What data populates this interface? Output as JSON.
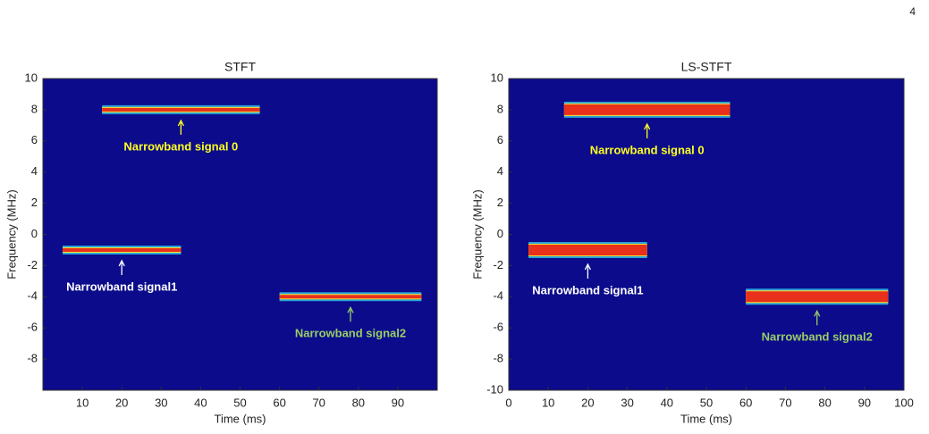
{
  "page_number": "4",
  "chart_data": [
    {
      "type": "spectrogram",
      "title": "STFT",
      "xlabel": "Time (ms)",
      "ylabel": "Frequency (MHz)",
      "xlim": [
        0,
        100
      ],
      "ylim": [
        -10,
        10
      ],
      "xticks": [
        10,
        20,
        30,
        40,
        50,
        60,
        70,
        80,
        90
      ],
      "yticks": [
        -8,
        -6,
        -4,
        -2,
        0,
        2,
        4,
        6,
        8,
        10
      ],
      "background": "#0b0b8c",
      "series": [
        {
          "name": "Narrowband signal 0",
          "color": "#e8301a",
          "label_color": "#ffff22",
          "x": [
            15,
            55
          ],
          "values": [
            8,
            8
          ]
        },
        {
          "name": "Narrowband signal1",
          "color": "#e8301a",
          "label_color": "#ffffff",
          "x": [
            5,
            35
          ],
          "values": [
            -1,
            -1
          ]
        },
        {
          "name": "Narrowband signal2",
          "color": "#e8301a",
          "label_color": "#99cc66",
          "x": [
            60,
            96
          ],
          "values": [
            -4,
            -4
          ]
        }
      ]
    },
    {
      "type": "spectrogram",
      "title": "LS-STFT",
      "xlabel": "Time (ms)",
      "ylabel": "Frequency (MHz)",
      "xlim": [
        0,
        100
      ],
      "ylim": [
        -10,
        10
      ],
      "xticks": [
        0,
        10,
        20,
        30,
        40,
        50,
        60,
        70,
        80,
        90,
        100
      ],
      "yticks": [
        -10,
        -8,
        -6,
        -4,
        -2,
        0,
        2,
        4,
        6,
        8,
        10
      ],
      "background": "#0b0b8c",
      "series": [
        {
          "name": "Narrowband signal 0",
          "color": "#e8301a",
          "label_color": "#ffff22",
          "x": [
            14,
            56
          ],
          "values": [
            8,
            8
          ]
        },
        {
          "name": "Narrowband signal1",
          "color": "#e8301a",
          "label_color": "#ffffff",
          "x": [
            5,
            35
          ],
          "values": [
            -1,
            -1
          ]
        },
        {
          "name": "Narrowband signal2",
          "color": "#e8301a",
          "label_color": "#99cc66",
          "x": [
            60,
            96
          ],
          "values": [
            -4,
            -4
          ]
        }
      ]
    }
  ]
}
